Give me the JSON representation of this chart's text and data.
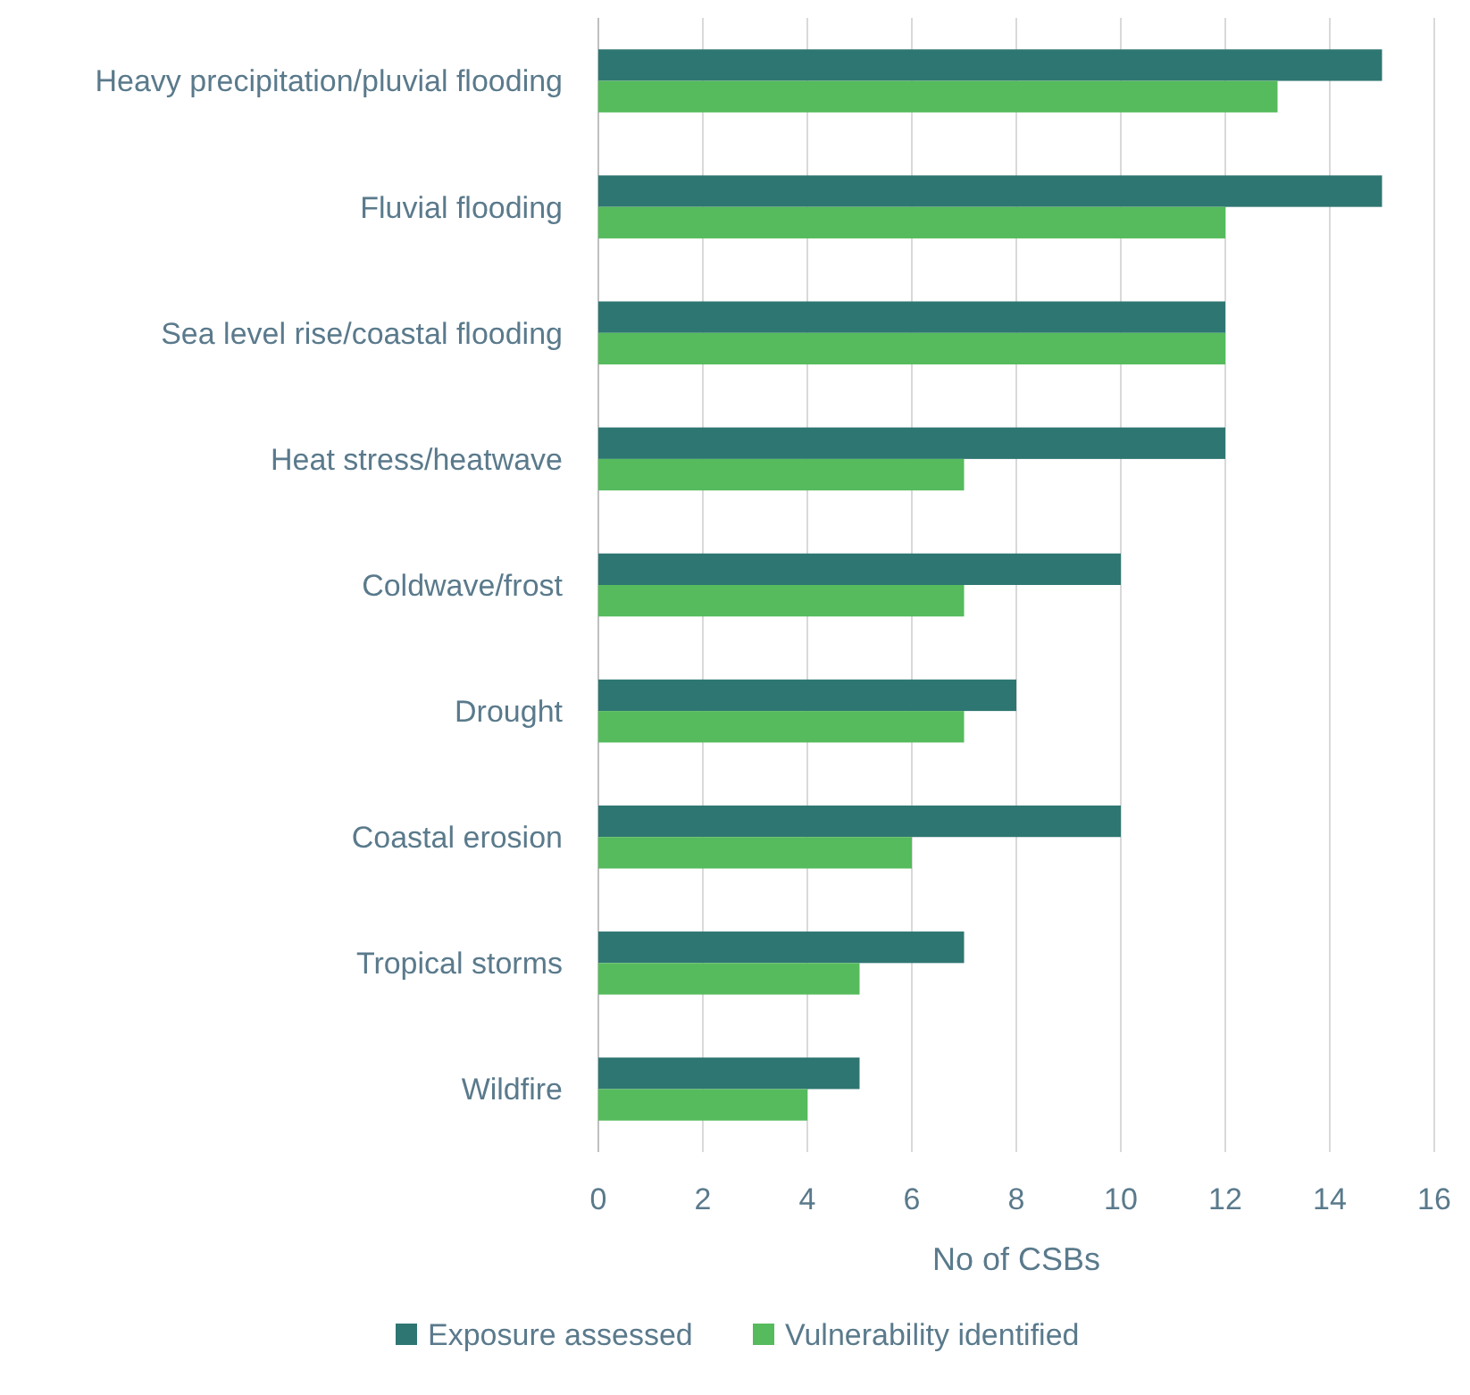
{
  "chart_data": {
    "type": "bar",
    "orientation": "horizontal",
    "xlabel": "No of CSBs",
    "categories": [
      "Heavy precipitation/pluvial flooding",
      "Fluvial flooding",
      "Sea level rise/coastal flooding",
      "Heat stress/heatwave",
      "Coldwave/frost",
      "Drought",
      "Coastal erosion",
      "Tropical storms",
      "Wildfire"
    ],
    "series": [
      {
        "name": "Exposure assessed",
        "color": "#2e7672",
        "values": [
          15,
          15,
          12,
          12,
          10,
          8,
          10,
          7,
          5
        ]
      },
      {
        "name": "Vulnerability identified",
        "color": "#55bb5c",
        "values": [
          13,
          12,
          12,
          7,
          7,
          7,
          6,
          5,
          4
        ]
      }
    ],
    "xlim": [
      0,
      16
    ],
    "xticks": [
      0,
      2,
      4,
      6,
      8,
      10,
      12,
      14,
      16
    ],
    "grid": "x",
    "legend": "bottom"
  }
}
